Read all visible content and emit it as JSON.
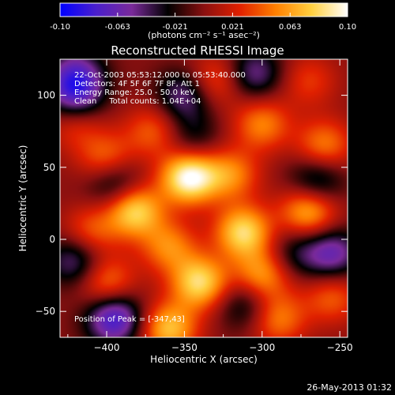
{
  "chart_data": {
    "type": "heatmap",
    "title": "Reconstructed RHESSI Image",
    "xlabel": "Heliocentric X (arcsec)",
    "ylabel": "Heliocentric Y (arcsec)",
    "xlim": [
      -430,
      -245
    ],
    "ylim": [
      -68,
      125
    ],
    "x_ticks": [
      -400,
      -350,
      -300,
      -250
    ],
    "y_ticks": [
      -50,
      0,
      50,
      100
    ],
    "colorbar": {
      "range": [
        -0.1,
        0.1
      ],
      "ticks": [
        "-0.10",
        "-0.063",
        "-0.021",
        "0.021",
        "0.063",
        "0.10"
      ],
      "label": "(photons cm⁻² s⁻¹ asec⁻²)",
      "colors": [
        "#0000ff",
        "#4a1fcc",
        "#7a2a9a",
        "#000000",
        "#8a1010",
        "#e02000",
        "#ff8000",
        "#ffd040",
        "#ffffff"
      ]
    },
    "annotations": [
      "22-Oct-2003 05:53:12.000 to 05:53:40.000",
      "Detectors: 4F 5F 6F 7F 8F, Att 1",
      "Energy Range: 25.0 - 50.0 keV",
      "Clean     Total counts: 1.04E+04"
    ],
    "peak_label": "Position of Peak = [-347,43]",
    "peak": {
      "x": -347,
      "y": 43
    },
    "blobs": [
      {
        "x": -347,
        "y": 43,
        "v": 0.1
      },
      {
        "x": -382,
        "y": 20,
        "v": 0.08
      },
      {
        "x": -312,
        "y": 5,
        "v": 0.08
      },
      {
        "x": -270,
        "y": 20,
        "v": 0.07
      },
      {
        "x": -340,
        "y": -30,
        "v": 0.08
      },
      {
        "x": -300,
        "y": -25,
        "v": 0.06
      },
      {
        "x": -400,
        "y": 55,
        "v": 0.05
      },
      {
        "x": -370,
        "y": 75,
        "v": 0.04
      },
      {
        "x": -300,
        "y": 80,
        "v": 0.05
      },
      {
        "x": -260,
        "y": 65,
        "v": 0.05
      },
      {
        "x": -410,
        "y": 5,
        "v": 0.04
      },
      {
        "x": -360,
        "y": -5,
        "v": 0.05
      },
      {
        "x": -360,
        "y": -62,
        "v": 0.07
      },
      {
        "x": -400,
        "y": -30,
        "v": 0.05
      },
      {
        "x": -290,
        "y": -55,
        "v": 0.05
      },
      {
        "x": -320,
        "y": 45,
        "v": 0.05
      },
      {
        "x": -255,
        "y": -40,
        "v": 0.04
      },
      {
        "x": -330,
        "y": 110,
        "v": 0.04
      },
      {
        "x": -270,
        "y": 110,
        "v": 0.03
      },
      {
        "x": -420,
        "y": 80,
        "v": 0.03
      },
      {
        "x": -350,
        "y": 100,
        "v": -0.05
      },
      {
        "x": -395,
        "y": 40,
        "v": -0.05
      },
      {
        "x": -265,
        "y": 40,
        "v": -0.05
      },
      {
        "x": -395,
        "y": -55,
        "v": -0.08
      },
      {
        "x": -420,
        "y": 100,
        "v": -0.06
      },
      {
        "x": -305,
        "y": 115,
        "v": -0.05
      },
      {
        "x": -255,
        "y": -10,
        "v": -0.06
      },
      {
        "x": -420,
        "y": -15,
        "v": -0.05
      },
      {
        "x": -310,
        "y": -45,
        "v": -0.04
      },
      {
        "x": -420,
        "y": 115,
        "v": -0.05
      },
      {
        "x": -345,
        "y": 70,
        "v": -0.03
      },
      {
        "x": -280,
        "y": -10,
        "v": -0.03
      }
    ]
  },
  "footer": {
    "timestamp": "26-May-2013 01:32"
  }
}
